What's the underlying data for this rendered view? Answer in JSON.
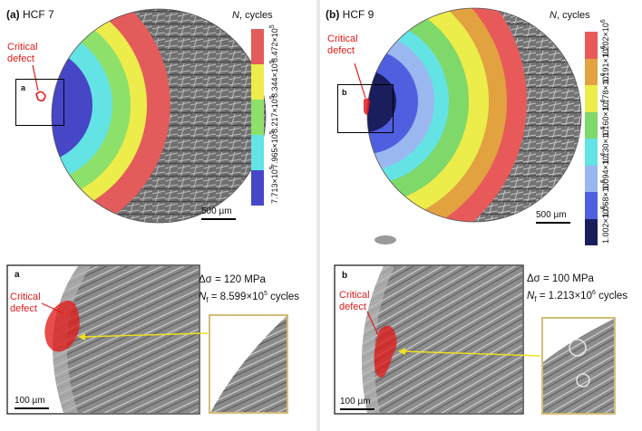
{
  "colors": {
    "fatigue_a": [
      "#e35b5b",
      "#ecec4b",
      "#8de06a",
      "#63e3e3",
      "#4646c7"
    ],
    "fatigue_b": [
      "#e85a5a",
      "#e2a240",
      "#ecec4b",
      "#7fd86a",
      "#63e3e3",
      "#9ab7f0",
      "#4f5fe0",
      "#1b1e5c"
    ],
    "critical": "#e11b1b",
    "arrow": "#f0e21a",
    "inset_border": "#c9a64a"
  },
  "panel_a": {
    "label": "(a)",
    "specimen": "HCF 7",
    "colorbar_title_var": "N",
    "colorbar_title_rest": ", cycles",
    "ticks": [
      {
        "mant": "8.472",
        "exp": "5"
      },
      {
        "mant": "8.344",
        "exp": "5"
      },
      {
        "mant": "8.217",
        "exp": "5"
      },
      {
        "mant": "7.965",
        "exp": "5"
      },
      {
        "mant": "7.713",
        "exp": "5"
      }
    ],
    "critical_line1": "Critical",
    "critical_line2": "defect",
    "zoom_letter": "a",
    "scale_label": "500 µm",
    "detail_letter": "a",
    "detail_critical_line1": "Critical",
    "detail_critical_line2": "defect",
    "detail_scale": "100 µm",
    "stress": "120 MPa",
    "nf_value": "8.599",
    "nf_exp": "5",
    "cycles_word": "cycles"
  },
  "panel_b": {
    "label": "(b)",
    "specimen": "HCF 9",
    "colorbar_title_var": "N",
    "colorbar_title_rest": ", cycles",
    "ticks": [
      {
        "mant": "1.202",
        "exp": "6"
      },
      {
        "mant": "1.191",
        "exp": "6"
      },
      {
        "mant": "1.178",
        "exp": "6"
      },
      {
        "mant": "1.160",
        "exp": "6"
      },
      {
        "mant": "1.130",
        "exp": "6"
      },
      {
        "mant": "1.094",
        "exp": "6"
      },
      {
        "mant": "1.068",
        "exp": "6"
      },
      {
        "mant": "1.002",
        "exp": "6"
      }
    ],
    "critical_line1": "Critical",
    "critical_line2": "defect",
    "zoom_letter": "b",
    "scale_label": "500 µm",
    "detail_letter": "b",
    "detail_critical_line1": "Critical",
    "detail_critical_line2": "defect",
    "detail_scale": "100 µm",
    "stress": "100 MPa",
    "nf_value": "1.213",
    "nf_exp": "6",
    "cycles_word": "cycles"
  },
  "symbols": {
    "delta_sigma": "Δσ",
    "equals": "=",
    "nf_var": "N",
    "nf_sub": "f",
    "times_ten": "×10"
  }
}
